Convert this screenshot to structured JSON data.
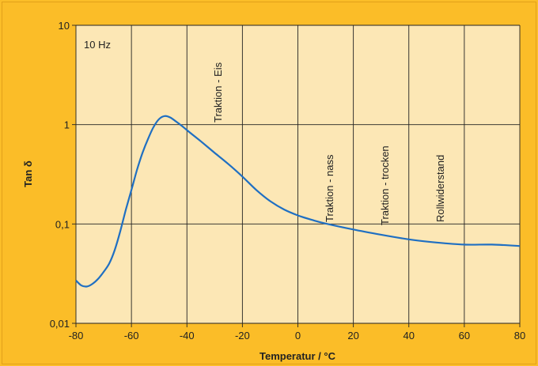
{
  "chart_data": {
    "type": "line",
    "xlabel": "Temperatur / °C",
    "ylabel": "Tan δ",
    "x_scale": "linear",
    "y_scale": "log",
    "xlim": [
      -80,
      80
    ],
    "ylim": [
      0.01,
      10
    ],
    "x_ticks": [
      "-80",
      "-60",
      "-40",
      "-20",
      "0",
      "20",
      "40",
      "60",
      "80"
    ],
    "y_ticks": [
      "0,01",
      "0,1",
      "1",
      "10"
    ],
    "grid": true,
    "colors": {
      "line": "#1f6fc2",
      "plot_background": "#fce7b5",
      "frame": "#fbbd28"
    },
    "frequency_note": "10 Hz",
    "annotations": [
      "Traktion - Eis",
      "Traktion - nass",
      "Traktion - trocken",
      "Rollwiderstand"
    ],
    "series": [
      {
        "x": [
          -80,
          -78,
          -76,
          -74,
          -72,
          -70,
          -68,
          -66,
          -64,
          -62,
          -60,
          -58,
          -56,
          -54,
          -52,
          -50,
          -48,
          -46,
          -44,
          -42,
          -40,
          -35,
          -30,
          -25,
          -20,
          -15,
          -10,
          -5,
          0,
          5,
          10,
          20,
          30,
          40,
          50,
          60,
          70,
          80
        ],
        "y": [
          0.027,
          0.024,
          0.0235,
          0.025,
          0.028,
          0.033,
          0.04,
          0.055,
          0.085,
          0.14,
          0.22,
          0.35,
          0.52,
          0.72,
          0.95,
          1.14,
          1.22,
          1.18,
          1.08,
          0.98,
          0.88,
          0.68,
          0.52,
          0.4,
          0.3,
          0.22,
          0.17,
          0.14,
          0.122,
          0.11,
          0.101,
          0.088,
          0.078,
          0.07,
          0.065,
          0.062,
          0.062,
          0.06
        ]
      }
    ]
  }
}
